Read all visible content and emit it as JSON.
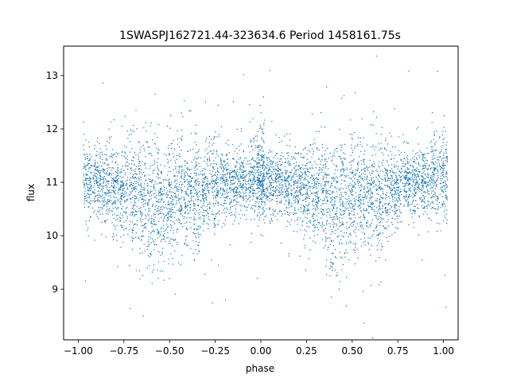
{
  "chart_data": {
    "type": "scatter",
    "title": "1SWASPJ162721.44-323634.6 Period 1458161.75s",
    "xlabel": "phase",
    "ylabel": "flux",
    "xlim": [
      -1.08,
      1.08
    ],
    "ylim": [
      8.05,
      13.55
    ],
    "xticks": [
      -1.0,
      -0.75,
      -0.5,
      -0.25,
      0.0,
      0.25,
      0.5,
      0.75,
      1.0
    ],
    "xtick_labels": [
      "−1.00",
      "−0.75",
      "−0.50",
      "−0.25",
      "0.00",
      "0.25",
      "0.50",
      "0.75",
      "1.00"
    ],
    "yticks": [
      9,
      10,
      11,
      12,
      13
    ],
    "ytick_labels": [
      "9",
      "10",
      "11",
      "12",
      "13"
    ],
    "grid": false,
    "legend": "none",
    "color": "#1f77b4",
    "baseline_flux": 11.0,
    "dip_phase": 0.5,
    "phase_folded": true,
    "clusters": [
      {
        "x": 0.0,
        "y": 11.1
      },
      {
        "x": 0.05,
        "y": 11.0
      },
      {
        "x": 0.1,
        "y": 11.0
      },
      {
        "x": 0.15,
        "y": 10.9
      },
      {
        "x": 0.2,
        "y": 10.9
      },
      {
        "x": 0.25,
        "y": 10.8
      },
      {
        "x": 0.3,
        "y": 10.8
      },
      {
        "x": 0.35,
        "y": 10.7
      },
      {
        "x": 0.4,
        "y": 10.6
      },
      {
        "x": 0.45,
        "y": 10.6
      },
      {
        "x": 0.5,
        "y": 10.7
      },
      {
        "x": 0.55,
        "y": 10.8
      },
      {
        "x": 0.6,
        "y": 10.8
      },
      {
        "x": 0.65,
        "y": 10.7
      },
      {
        "x": 0.7,
        "y": 10.9
      },
      {
        "x": 0.75,
        "y": 10.9
      },
      {
        "x": 0.8,
        "y": 11.0
      },
      {
        "x": 0.85,
        "y": 11.0
      },
      {
        "x": 0.9,
        "y": 11.0
      },
      {
        "x": 0.95,
        "y": 11.1
      },
      {
        "x": 1.0,
        "y": 11.1
      }
    ]
  }
}
